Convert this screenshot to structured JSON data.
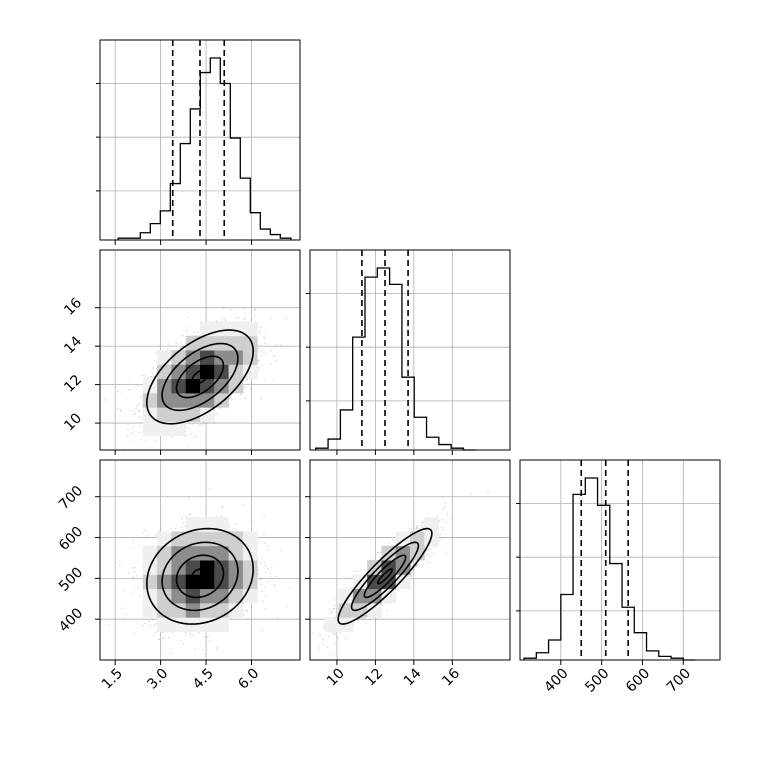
{
  "chart_data": {
    "type": "corner",
    "parameters": [
      {
        "range": [
          1.0,
          7.6
        ],
        "ticks": [
          1.5,
          3.0,
          4.5,
          6.0
        ],
        "tick_labels": [
          "1.5",
          "3.0",
          "4.5",
          "6.0"
        ],
        "quantiles": [
          3.4,
          4.3,
          5.1
        ],
        "hist_edges": [
          1.6,
          2.33,
          2.66,
          2.99,
          3.32,
          3.65,
          3.98,
          4.31,
          4.64,
          4.97,
          5.3,
          5.63,
          5.96,
          6.29,
          6.62,
          6.95,
          7.3
        ],
        "hist_counts": [
          0.01,
          0.04,
          0.09,
          0.16,
          0.31,
          0.53,
          0.72,
          0.92,
          1.0,
          0.86,
          0.56,
          0.34,
          0.15,
          0.06,
          0.03,
          0.01
        ]
      },
      {
        "range": [
          8.6,
          19.0
        ],
        "ticks": [
          10,
          12,
          14,
          16
        ],
        "tick_labels": [
          "10",
          "12",
          "14",
          "16"
        ],
        "quantiles": [
          11.3,
          12.5,
          13.7
        ],
        "hist_edges": [
          8.9,
          9.54,
          10.18,
          10.82,
          11.46,
          12.1,
          12.74,
          13.38,
          14.02,
          14.66,
          15.3,
          15.94,
          16.58,
          17.22
        ],
        "hist_counts": [
          0.01,
          0.06,
          0.22,
          0.62,
          0.95,
          1.0,
          0.91,
          0.4,
          0.18,
          0.07,
          0.03,
          0.01,
          0.0
        ]
      },
      {
        "range": [
          300,
          790
        ],
        "ticks": [
          400,
          500,
          600,
          700
        ],
        "tick_labels": [
          "400",
          "500",
          "600",
          "700"
        ],
        "quantiles": [
          450,
          510,
          565
        ],
        "hist_edges": [
          310,
          340,
          370,
          400,
          430,
          460,
          490,
          520,
          550,
          580,
          610,
          640,
          670,
          700,
          730
        ],
        "hist_counts": [
          0.01,
          0.04,
          0.11,
          0.36,
          0.91,
          1.0,
          0.85,
          0.53,
          0.29,
          0.15,
          0.05,
          0.02,
          0.01,
          0.0
        ]
      }
    ],
    "pairs": [
      {
        "x_param": 0,
        "y_param": 1,
        "center": [
          4.3,
          12.4
        ],
        "sigma": [
          0.9,
          1.25
        ],
        "rho": 0.55,
        "contour_levels": [
          0.12,
          0.39,
          0.86,
          1.39
        ],
        "peak": [
          4.3,
          12.6
        ]
      },
      {
        "x_param": 0,
        "y_param": 2,
        "center": [
          4.3,
          505
        ],
        "sigma": [
          0.9,
          60
        ],
        "rho": 0.15,
        "contour_levels": [
          0.12,
          0.39,
          0.86,
          1.39
        ],
        "peak": [
          4.3,
          510
        ]
      },
      {
        "x_param": 1,
        "y_param": 2,
        "center": [
          12.5,
          505
        ],
        "sigma": [
          1.25,
          60
        ],
        "rho": 0.9,
        "contour_levels": [
          0.12,
          0.39,
          0.86,
          1.39
        ],
        "peak": [
          12.6,
          508
        ]
      }
    ],
    "grid": true,
    "colors": {
      "axes": "#000000",
      "grid": "#b0b0b0",
      "points": "#9a9a9a"
    }
  }
}
